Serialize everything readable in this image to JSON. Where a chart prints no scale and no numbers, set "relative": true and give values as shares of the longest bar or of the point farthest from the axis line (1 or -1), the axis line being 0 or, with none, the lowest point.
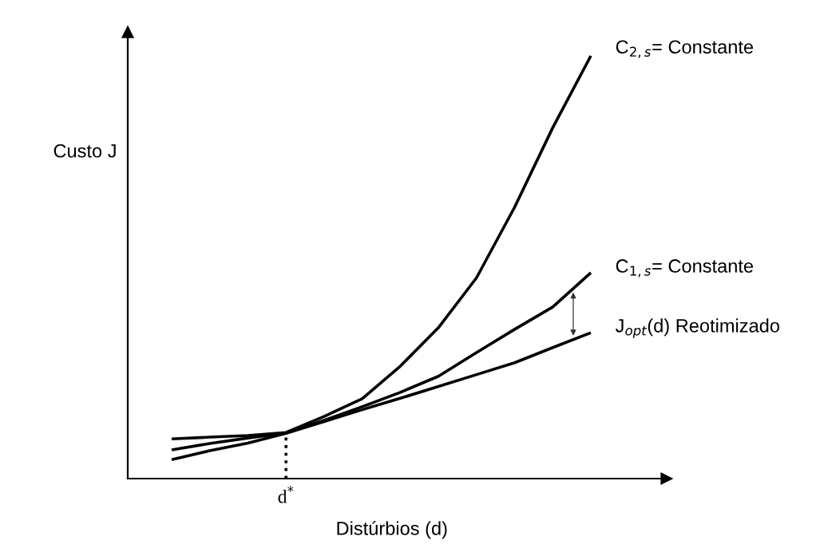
{
  "chart_data": {
    "type": "line",
    "relative": true,
    "xlabel": "Distúrbios (d)",
    "ylabel": "Custo J",
    "categories": [
      null,
      null,
      null,
      null,
      null,
      null,
      null,
      null,
      null,
      null,
      null,
      null
    ],
    "series": [
      {
        "name": "C$_{2,s}$= Constante",
        "color": "#000000",
        "values": [
          0.094,
          0.098,
          0.102,
          0.109,
          0.147,
          0.189,
          0.266,
          0.357,
          0.475,
          0.642,
          0.83,
          1.0
        ]
      },
      {
        "name": "C$_{1,s}$= Constante",
        "color": "#000000",
        "values": [
          0.068,
          0.083,
          0.096,
          0.108,
          0.138,
          0.17,
          0.204,
          0.242,
          0.298,
          0.353,
          0.406,
          0.487
        ]
      },
      {
        "name": "J$_{opt}$(d) Reotimizado",
        "color": "#000000",
        "values": [
          0.045,
          0.066,
          0.084,
          0.107,
          0.135,
          0.163,
          0.19,
          0.218,
          0.246,
          0.274,
          0.31,
          0.345
        ]
      }
    ],
    "annotations": [
      "d$^{*}$"
    ],
    "legend": false,
    "marker": "none",
    "line_style": "solid"
  }
}
